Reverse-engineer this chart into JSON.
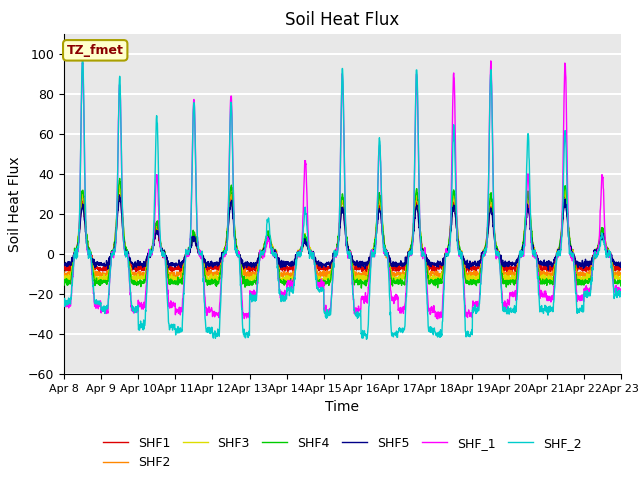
{
  "title": "Soil Heat Flux",
  "xlabel": "Time",
  "ylabel": "Soil Heat Flux",
  "ylim": [
    -60,
    110
  ],
  "yticks": [
    -60,
    -40,
    -20,
    0,
    20,
    40,
    60,
    80,
    100
  ],
  "n_days": 15,
  "colors": {
    "SHF1": "#dd0000",
    "SHF2": "#ff8800",
    "SHF3": "#dddd00",
    "SHF4": "#00cc00",
    "SHF5": "#000088",
    "SHF_1": "#ff00ff",
    "SHF_2": "#00cccc"
  },
  "legend_label": "TZ_fmet",
  "bg_color": "#e8e8e8",
  "grid_color": "white"
}
